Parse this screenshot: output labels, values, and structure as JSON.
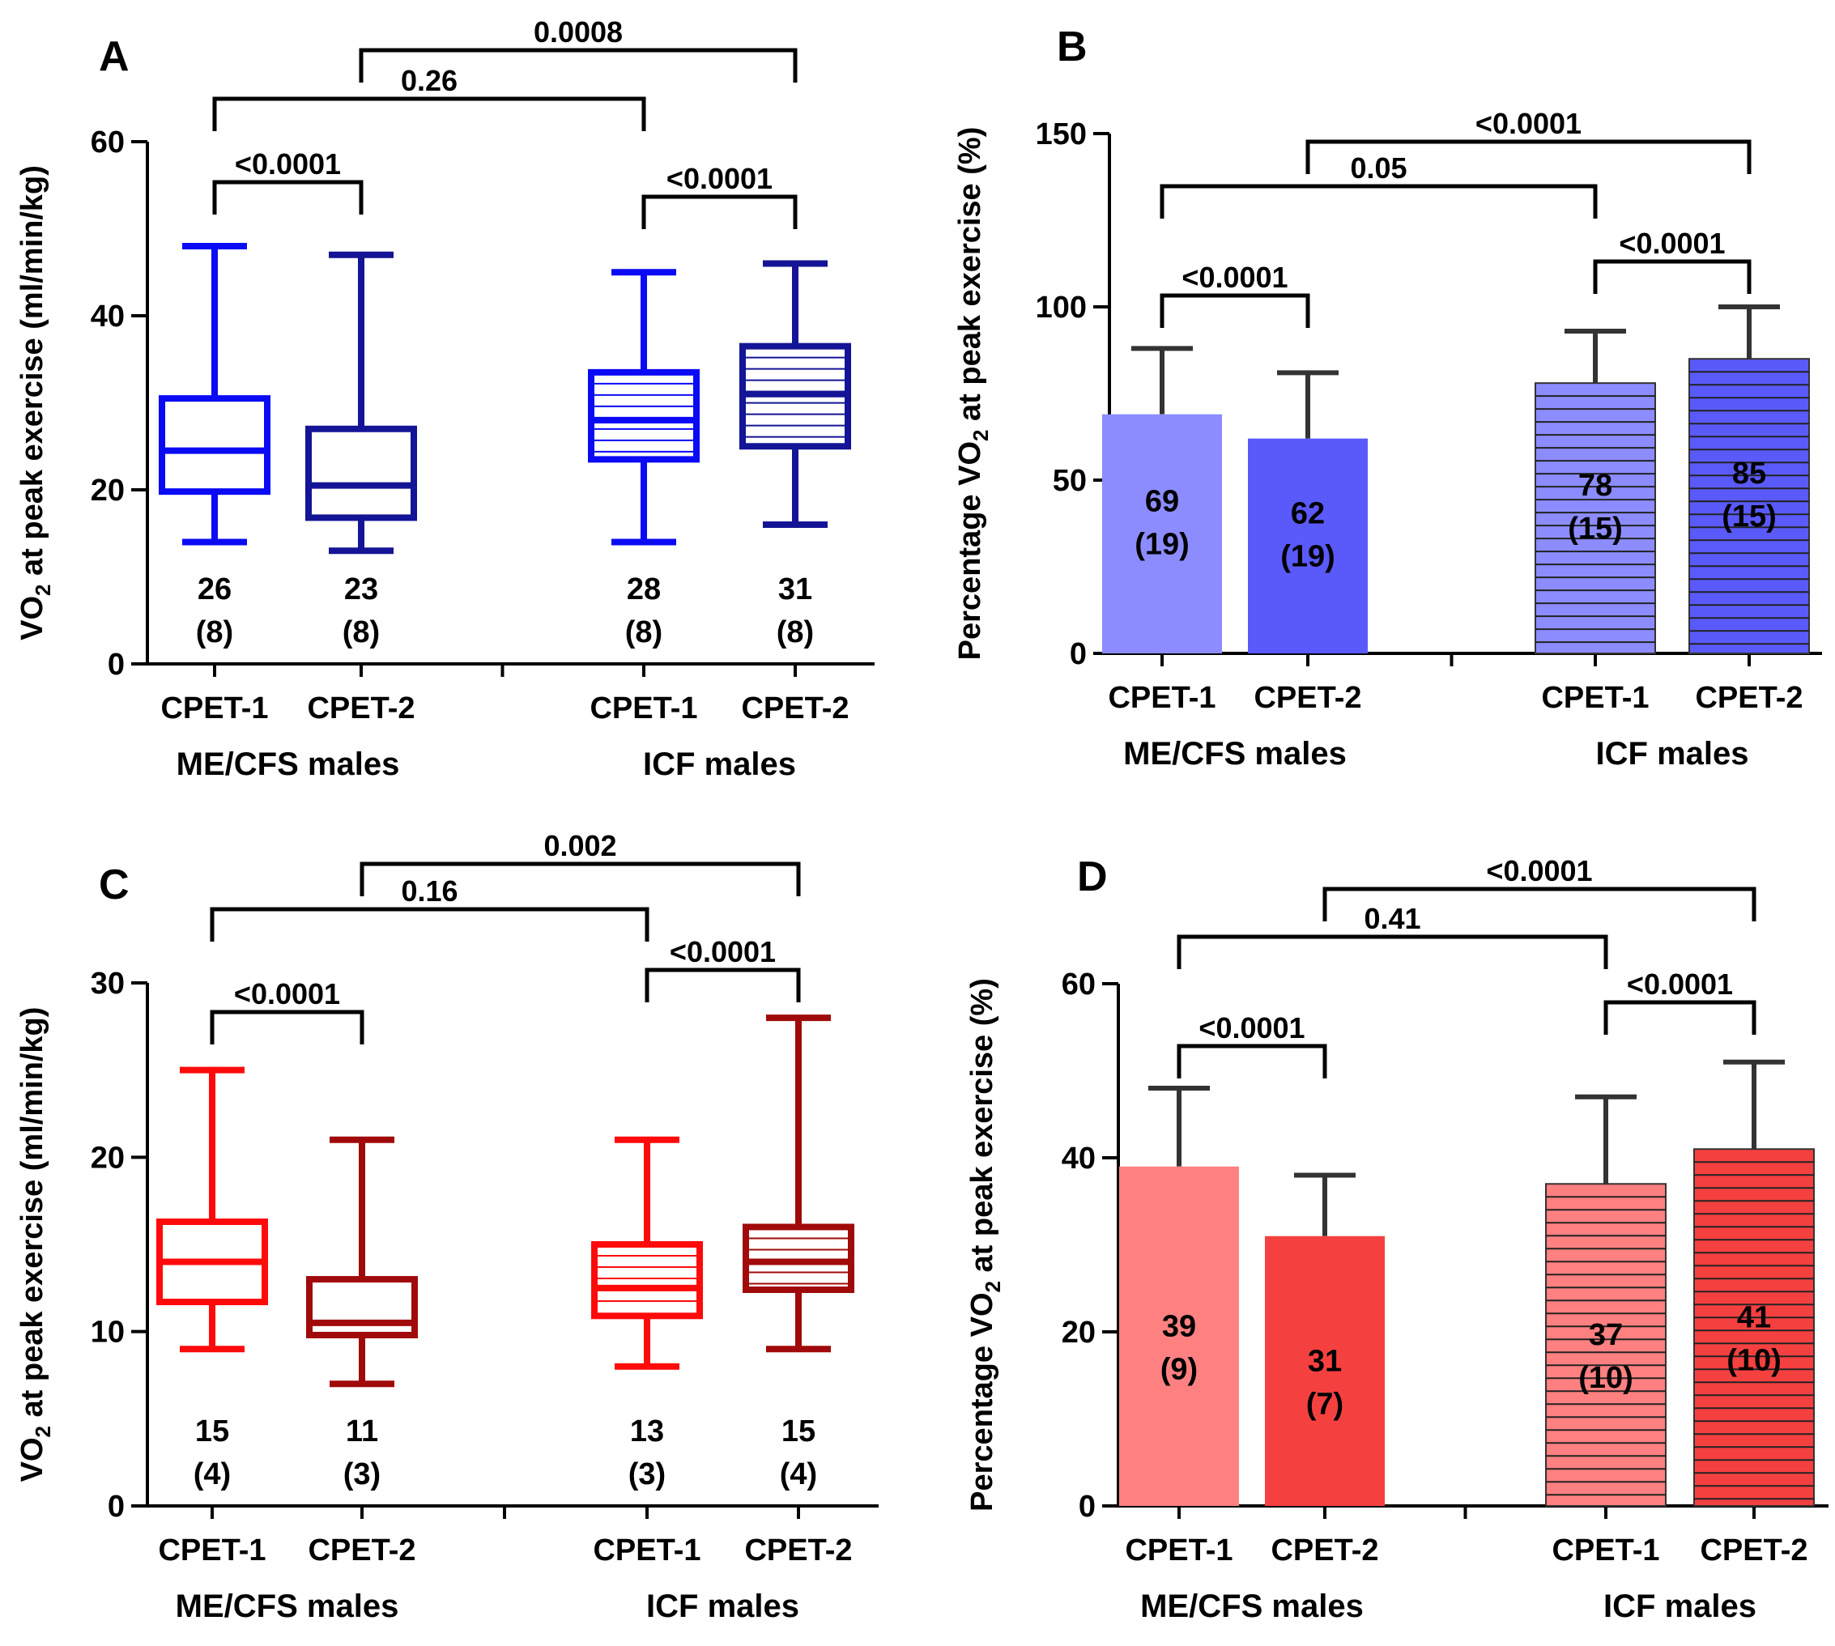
{
  "figure": {
    "panels": [
      {
        "letter": "A",
        "chart_type": "box",
        "y_label": "VO",
        "y_label_sub": "2",
        "y_label_rest": " at peak exercise (ml/min/kg)",
        "ylim": [
          0,
          60
        ],
        "ticks": [
          0,
          20,
          40,
          60
        ],
        "groups": [
          "ME/CFS males",
          "ICF males"
        ],
        "categories": [
          "CPET-1",
          "CPET-2",
          "CPET-1",
          "CPET-2"
        ],
        "series": [
          {
            "group": "ME/CFS males",
            "test": "CPET-1",
            "min": 14,
            "q1": 19.8,
            "median": 24.5,
            "q3": 30.5,
            "max": 48,
            "mean": "26",
            "sd": "(8)",
            "color": "#0A0AF5",
            "hatched": false
          },
          {
            "group": "ME/CFS males",
            "test": "CPET-2",
            "min": 13,
            "q1": 16.8,
            "median": 20.5,
            "q3": 27,
            "max": 47,
            "mean": "23",
            "sd": "(8)",
            "color": "#141496",
            "hatched": false
          },
          {
            "group": "ICF males",
            "test": "CPET-1",
            "min": 14,
            "q1": 23.5,
            "median": 28,
            "q3": 33.5,
            "max": 45,
            "mean": "28",
            "sd": "(8)",
            "color": "#0A0AF5",
            "hatched": true
          },
          {
            "group": "ICF males",
            "test": "CPET-2",
            "min": 16,
            "q1": 25,
            "median": 31,
            "q3": 36.5,
            "max": 46,
            "mean": "31",
            "sd": "(8)",
            "color": "#141496",
            "hatched": true
          }
        ],
        "comparisons": [
          {
            "from": 0,
            "to": 1,
            "p": "<0.0001"
          },
          {
            "from": 2,
            "to": 3,
            "p": "<0.0001"
          },
          {
            "from": 0,
            "to": 2,
            "p": "0.26"
          },
          {
            "from": 1,
            "to": 3,
            "p": "0.0008"
          }
        ]
      },
      {
        "letter": "B",
        "chart_type": "bar",
        "y_label": "Percentage VO",
        "y_label_sub": "2",
        "y_label_rest": " at peak exercise (%)",
        "ylim": [
          0,
          150
        ],
        "ticks": [
          0,
          50,
          100,
          150
        ],
        "groups": [
          "ME/CFS males",
          "ICF males"
        ],
        "categories": [
          "CPET-1",
          "CPET-2",
          "CPET-1",
          "CPET-2"
        ],
        "series": [
          {
            "group": "ME/CFS males",
            "test": "CPET-1",
            "value": 69,
            "sd": 19,
            "label": "69",
            "sd_label": "(19)",
            "color": "#8C8CFF",
            "hatched": false
          },
          {
            "group": "ME/CFS males",
            "test": "CPET-2",
            "value": 62,
            "sd": 19,
            "label": "62",
            "sd_label": "(19)",
            "color": "#5A5AFA",
            "hatched": false
          },
          {
            "group": "ICF males",
            "test": "CPET-1",
            "value": 78,
            "sd": 15,
            "label": "78",
            "sd_label": "(15)",
            "color": "#8C8CFF",
            "hatched": true
          },
          {
            "group": "ICF males",
            "test": "CPET-2",
            "value": 85,
            "sd": 15,
            "label": "85",
            "sd_label": "(15)",
            "color": "#5A5AFA",
            "hatched": true
          }
        ],
        "comparisons": [
          {
            "from": 0,
            "to": 1,
            "p": "<0.0001"
          },
          {
            "from": 2,
            "to": 3,
            "p": "<0.0001"
          },
          {
            "from": 0,
            "to": 2,
            "p": "0.05"
          },
          {
            "from": 1,
            "to": 3,
            "p": "<0.0001"
          }
        ]
      },
      {
        "letter": "C",
        "chart_type": "box",
        "y_label": "VO",
        "y_label_sub": "2",
        "y_label_rest": " at peak exercise (ml/min/kg)",
        "ylim": [
          0,
          30
        ],
        "ticks": [
          0,
          10,
          20,
          30
        ],
        "groups": [
          "ME/CFS males",
          "ICF males"
        ],
        "categories": [
          "CPET-1",
          "CPET-2",
          "CPET-1",
          "CPET-2"
        ],
        "series": [
          {
            "group": "ME/CFS males",
            "test": "CPET-1",
            "min": 9,
            "q1": 11.7,
            "median": 14,
            "q3": 16.3,
            "max": 25,
            "mean": "15",
            "sd": "(4)",
            "color": "#FF0A0A",
            "hatched": false
          },
          {
            "group": "ME/CFS males",
            "test": "CPET-2",
            "min": 7,
            "q1": 9.8,
            "median": 10.5,
            "q3": 13,
            "max": 21,
            "mean": "11",
            "sd": "(3)",
            "color": "#A00A0A",
            "hatched": false
          },
          {
            "group": "ICF males",
            "test": "CPET-1",
            "min": 8,
            "q1": 10.9,
            "median": 12.5,
            "q3": 15,
            "max": 21,
            "mean": "13",
            "sd": "(3)",
            "color": "#FF0A0A",
            "hatched": true
          },
          {
            "group": "ICF males",
            "test": "CPET-2",
            "min": 9,
            "q1": 12.4,
            "median": 14,
            "q3": 16,
            "max": 28,
            "mean": "15",
            "sd": "(4)",
            "color": "#A00A0A",
            "hatched": true
          }
        ],
        "comparisons": [
          {
            "from": 0,
            "to": 1,
            "p": "<0.0001"
          },
          {
            "from": 2,
            "to": 3,
            "p": "<0.0001"
          },
          {
            "from": 0,
            "to": 2,
            "p": "0.16"
          },
          {
            "from": 1,
            "to": 3,
            "p": "0.002"
          }
        ]
      },
      {
        "letter": "D",
        "chart_type": "bar",
        "y_label": "Percentage VO",
        "y_label_sub": "2",
        "y_label_rest": " at peak exercise (%)",
        "ylim": [
          0,
          60
        ],
        "ticks": [
          0,
          20,
          40,
          60
        ],
        "groups": [
          "ME/CFS males",
          "ICF males"
        ],
        "categories": [
          "CPET-1",
          "CPET-2",
          "CPET-1",
          "CPET-2"
        ],
        "series": [
          {
            "group": "ME/CFS males",
            "test": "CPET-1",
            "value": 39,
            "sd": 9,
            "label": "39",
            "sd_label": "(9)",
            "color": "#FF8080",
            "hatched": false
          },
          {
            "group": "ME/CFS males",
            "test": "CPET-2",
            "value": 31,
            "sd": 7,
            "label": "31",
            "sd_label": "(7)",
            "color": "#F54040",
            "hatched": false
          },
          {
            "group": "ICF males",
            "test": "CPET-1",
            "value": 37,
            "sd": 10,
            "label": "37",
            "sd_label": "(10)",
            "color": "#FF8080",
            "hatched": true
          },
          {
            "group": "ICF males",
            "test": "CPET-2",
            "value": 41,
            "sd": 10,
            "label": "41",
            "sd_label": "(10)",
            "color": "#F54040",
            "hatched": true
          }
        ],
        "comparisons": [
          {
            "from": 0,
            "to": 1,
            "p": "<0.0001"
          },
          {
            "from": 2,
            "to": 3,
            "p": "<0.0001"
          },
          {
            "from": 0,
            "to": 2,
            "p": "0.41"
          },
          {
            "from": 1,
            "to": 3,
            "p": "<0.0001"
          }
        ]
      }
    ]
  },
  "chart_data": [
    {
      "type": "box",
      "title": "A",
      "ylabel": "VO2 at peak exercise (ml/min/kg)",
      "ylim": [
        0,
        60
      ],
      "categories": [
        "ME/CFS males CPET-1",
        "ME/CFS males CPET-2",
        "ICF males CPET-1",
        "ICF males CPET-2"
      ],
      "medians": [
        24.5,
        20.5,
        28,
        31
      ],
      "means": [
        26,
        23,
        28,
        31
      ],
      "sd": [
        8,
        8,
        8,
        8
      ]
    },
    {
      "type": "bar",
      "title": "B",
      "ylabel": "Percentage VO2 at peak exercise (%)",
      "ylim": [
        0,
        150
      ],
      "categories": [
        "ME/CFS males CPET-1",
        "ME/CFS males CPET-2",
        "ICF males CPET-1",
        "ICF males CPET-2"
      ],
      "values": [
        69,
        62,
        78,
        85
      ],
      "sd": [
        19,
        19,
        15,
        15
      ]
    },
    {
      "type": "box",
      "title": "C",
      "ylabel": "VO2 at peak exercise (ml/min/kg)",
      "ylim": [
        0,
        30
      ],
      "categories": [
        "ME/CFS males CPET-1",
        "ME/CFS males CPET-2",
        "ICF males CPET-1",
        "ICF males CPET-2"
      ],
      "medians": [
        14,
        10.5,
        12.5,
        14
      ],
      "means": [
        15,
        11,
        13,
        15
      ],
      "sd": [
        4,
        3,
        3,
        4
      ]
    },
    {
      "type": "bar",
      "title": "D",
      "ylabel": "Percentage VO2 at peak exercise (%)",
      "ylim": [
        0,
        60
      ],
      "categories": [
        "ME/CFS males CPET-1",
        "ME/CFS males CPET-2",
        "ICF males CPET-1",
        "ICF males CPET-2"
      ],
      "values": [
        39,
        31,
        37,
        41
      ],
      "sd": [
        9,
        7,
        10,
        10
      ]
    }
  ]
}
